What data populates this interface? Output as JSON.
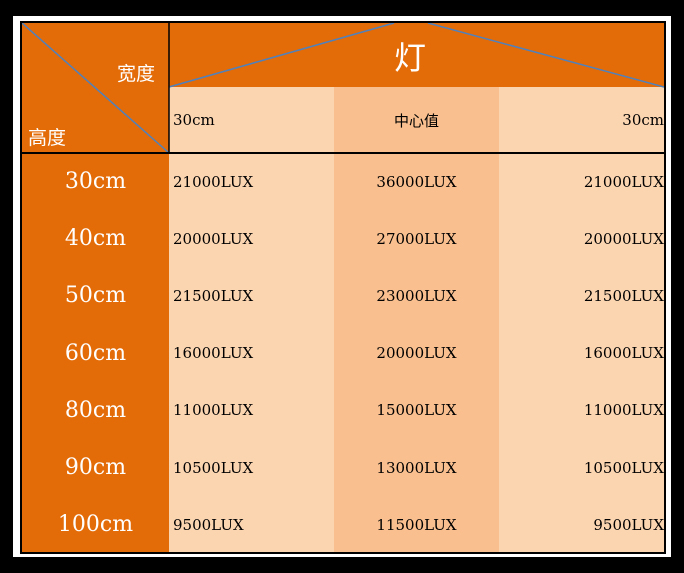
{
  "header": {
    "width_label": "宽度",
    "height_label": "高度",
    "lamp_label": "灯"
  },
  "columns": [
    "30cm",
    "中心值",
    "30cm"
  ],
  "rows": [
    {
      "height": "30cm",
      "values": [
        "21000LUX",
        "36000LUX",
        "21000LUX"
      ]
    },
    {
      "height": "40cm",
      "values": [
        "20000LUX",
        "27000LUX",
        "20000LUX"
      ]
    },
    {
      "height": "50cm",
      "values": [
        "21500LUX",
        "23000LUX",
        "21500LUX"
      ]
    },
    {
      "height": "60cm",
      "values": [
        "16000LUX",
        "20000LUX",
        "16000LUX"
      ]
    },
    {
      "height": "80cm",
      "values": [
        "11000LUX",
        "15000LUX",
        "11000LUX"
      ]
    },
    {
      "height": "90cm",
      "values": [
        "10500LUX",
        "13000LUX",
        "10500LUX"
      ]
    },
    {
      "height": "100cm",
      "values": [
        "9500LUX",
        "11500LUX",
        "9500LUX"
      ]
    }
  ],
  "colors": {
    "orange": "#e36c09",
    "light": "#fbd4b0",
    "center": "#f9bf8f",
    "diagonal": "#4f81bd"
  }
}
